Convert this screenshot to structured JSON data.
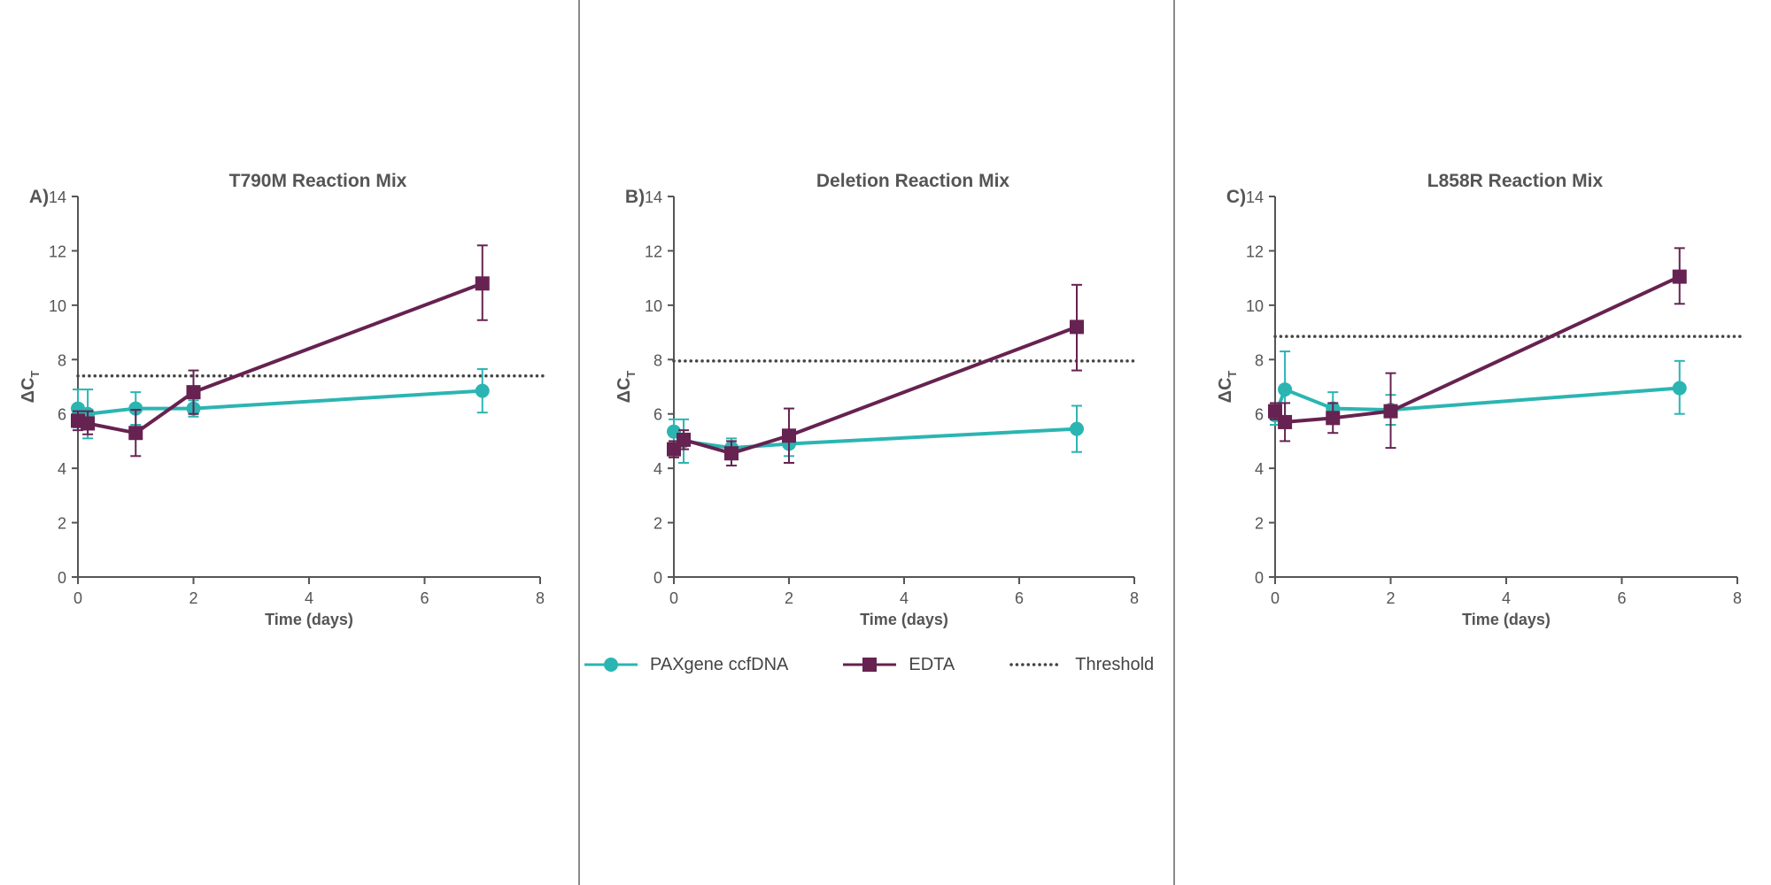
{
  "colors": {
    "paxgene": "#2bb5b2",
    "edta": "#662250",
    "threshold": "#444444",
    "axis": "#555555",
    "text": "#555555"
  },
  "legend": {
    "paxgene_label": "PAXgene ccfDNA",
    "edta_label": "EDTA",
    "threshold_label": "Threshold"
  },
  "chart_data": [
    {
      "type": "line",
      "panel_label": "A)",
      "title": "T790M Reaction Mix",
      "xlabel": "Time (days)",
      "ylabel_main": "ΔC",
      "ylabel_sub": "T",
      "xlim": [
        0,
        8
      ],
      "ylim": [
        0,
        14
      ],
      "xticks": [
        0,
        2,
        4,
        6,
        8
      ],
      "yticks": [
        0,
        2,
        4,
        6,
        8,
        10,
        12,
        14
      ],
      "threshold": 7.4,
      "series": [
        {
          "name": "PAXgene ccfDNA",
          "x": [
            0,
            0.17,
            1,
            2,
            7
          ],
          "y": [
            6.2,
            6.0,
            6.2,
            6.2,
            6.85
          ],
          "err_low": [
            5.5,
            5.1,
            5.6,
            5.9,
            6.05
          ],
          "err_high": [
            6.9,
            6.9,
            6.8,
            6.5,
            7.65
          ]
        },
        {
          "name": "EDTA",
          "x": [
            0,
            0.17,
            1,
            2,
            7
          ],
          "y": [
            5.75,
            5.65,
            5.3,
            6.8,
            10.8
          ],
          "err_low": [
            5.4,
            5.25,
            4.45,
            6.0,
            9.45
          ],
          "err_high": [
            6.1,
            6.1,
            6.15,
            7.6,
            12.2
          ]
        }
      ]
    },
    {
      "type": "line",
      "panel_label": "B)",
      "title": "Deletion Reaction Mix",
      "xlabel": "Time (days)",
      "ylabel_main": "ΔC",
      "ylabel_sub": "T",
      "xlim": [
        0,
        8
      ],
      "ylim": [
        0,
        14
      ],
      "xticks": [
        0,
        2,
        4,
        6,
        8
      ],
      "yticks": [
        0,
        2,
        4,
        6,
        8,
        10,
        12,
        14
      ],
      "threshold": 7.95,
      "series": [
        {
          "name": "PAXgene ccfDNA",
          "x": [
            0,
            0.17,
            1,
            2,
            7
          ],
          "y": [
            5.35,
            5.0,
            4.75,
            4.9,
            5.45
          ],
          "err_low": [
            4.9,
            4.2,
            4.4,
            4.45,
            4.6
          ],
          "err_high": [
            5.8,
            5.8,
            5.1,
            5.35,
            6.3
          ]
        },
        {
          "name": "EDTA",
          "x": [
            0,
            0.17,
            1,
            2,
            7
          ],
          "y": [
            4.7,
            5.05,
            4.55,
            5.2,
            9.2
          ],
          "err_low": [
            4.4,
            4.7,
            4.1,
            4.2,
            7.6
          ],
          "err_high": [
            5.0,
            5.4,
            5.0,
            6.2,
            10.75
          ]
        }
      ]
    },
    {
      "type": "line",
      "panel_label": "C)",
      "title": "L858R Reaction Mix",
      "xlabel": "Time (days)",
      "ylabel_main": "ΔC",
      "ylabel_sub": "T",
      "xlim": [
        0,
        8
      ],
      "ylim": [
        0,
        14
      ],
      "xticks": [
        0,
        2,
        4,
        6,
        8
      ],
      "yticks": [
        0,
        2,
        4,
        6,
        8,
        10,
        12,
        14
      ],
      "threshold": 8.85,
      "series": [
        {
          "name": "PAXgene ccfDNA",
          "x": [
            0,
            0.17,
            1,
            2,
            7
          ],
          "y": [
            5.95,
            6.9,
            6.2,
            6.15,
            6.95
          ],
          "err_low": [
            5.6,
            5.5,
            5.65,
            5.6,
            6.0
          ],
          "err_high": [
            6.3,
            8.3,
            6.8,
            6.7,
            7.95
          ]
        },
        {
          "name": "EDTA",
          "x": [
            0,
            0.17,
            1,
            2,
            7
          ],
          "y": [
            6.1,
            5.7,
            5.85,
            6.1,
            11.05
          ],
          "err_low": [
            5.8,
            5.0,
            5.3,
            4.75,
            10.05
          ],
          "err_high": [
            6.4,
            6.4,
            6.4,
            7.5,
            12.1
          ]
        }
      ]
    }
  ]
}
